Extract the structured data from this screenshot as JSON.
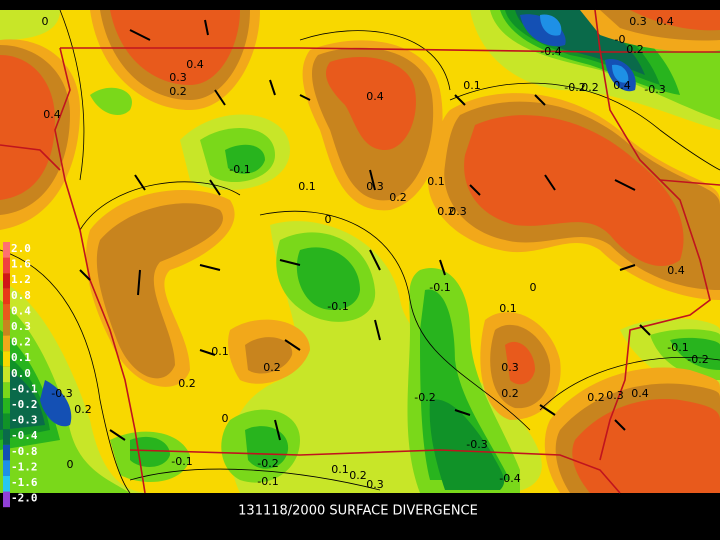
{
  "caption": "131118/2000 SURFACE DIVERGENCE",
  "legend": [
    {
      "label": "2.0",
      "color": "#ff7070"
    },
    {
      "label": "1.6",
      "color": "#f04040"
    },
    {
      "label": "1.2",
      "color": "#d01818"
    },
    {
      "label": "0.8",
      "color": "#e83818"
    },
    {
      "label": "0.4",
      "color": "#e85a1c"
    },
    {
      "label": "0.3",
      "color": "#c8841e"
    },
    {
      "label": "0.2",
      "color": "#f2a81a"
    },
    {
      "label": "0.1",
      "color": "#f8d800"
    },
    {
      "label": "0.0",
      "color": "#c8e628"
    },
    {
      "label": "-0.1",
      "color": "#7ad81a"
    },
    {
      "label": "-0.2",
      "color": "#28b41e"
    },
    {
      "label": "-0.3",
      "color": "#109228"
    },
    {
      "label": "-0.4",
      "color": "#0a6a4a"
    },
    {
      "label": "-0.8",
      "color": "#1450b4"
    },
    {
      "label": "-1.2",
      "color": "#1e90e6"
    },
    {
      "label": "-1.6",
      "color": "#28c8f0"
    },
    {
      "label": "-2.0",
      "color": "#9040d8"
    }
  ],
  "contour_labels": [
    "0",
    "0.4",
    "0.3",
    "0.2",
    "0.4",
    "0.4",
    "0.1",
    "-0.1",
    "0.1",
    "0.3",
    "0.2",
    "0.1",
    "0.2",
    "0.3",
    "0",
    "-0.1",
    "-0.1",
    "0.1",
    "0",
    "0.4",
    "-0.2",
    "0.2",
    "0.4",
    "-0.3",
    "-0.4",
    "0.3",
    "0.4",
    "-0",
    "0.2",
    "0.1",
    "0.2",
    "0.2",
    "0",
    "0.2",
    "-0.3",
    "0",
    "-0.1",
    "-0.2",
    "-0.1",
    "0.1",
    "0.2",
    "0.3",
    "-0.2",
    "-0.3",
    "-0.4",
    "0.3",
    "0.2",
    "0.2",
    "0.3",
    "0.4",
    "-0.1",
    "-0.2"
  ]
}
